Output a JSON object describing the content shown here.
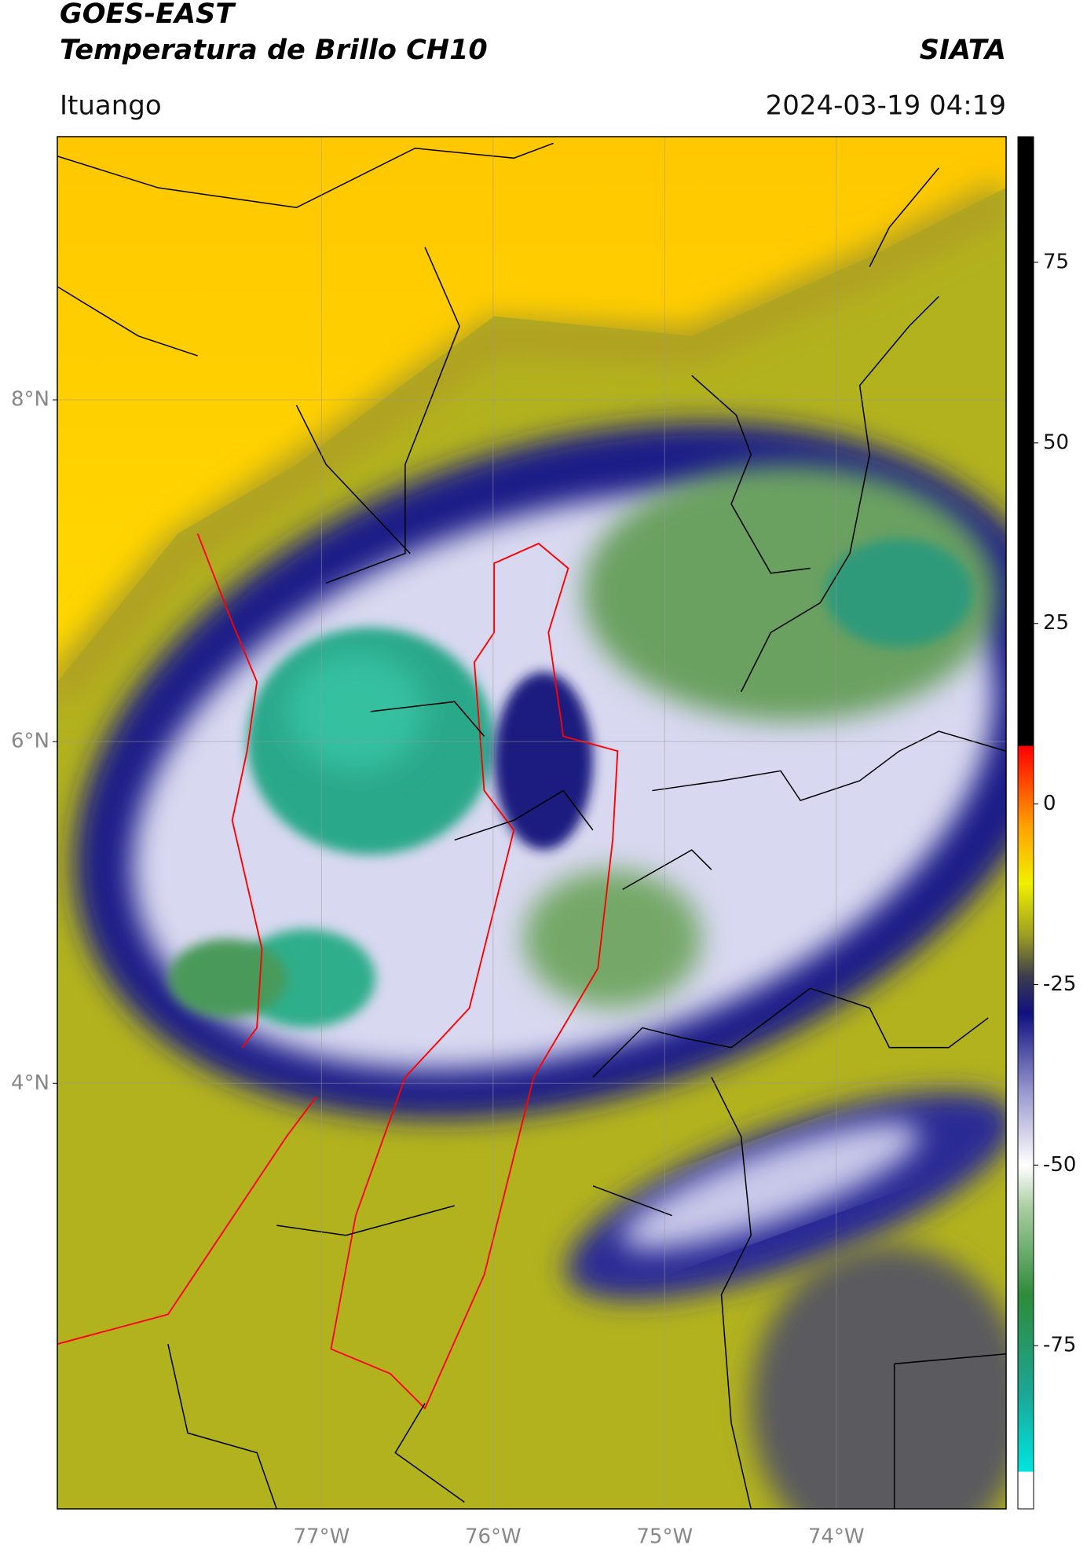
{
  "chart_data": {
    "type": "map",
    "title": "GOES-EAST",
    "subtitle": "Temperatura de Brillo CH10",
    "source": "SIATA",
    "location": "Ituango",
    "datetime": "2024-03-19 04:19",
    "xlim": [
      -78.54,
      -73.01
    ],
    "ylim": [
      1.51,
      9.54
    ],
    "xticks": [
      {
        "value": -77,
        "label": "77°W"
      },
      {
        "value": -76,
        "label": "76°W"
      },
      {
        "value": -75,
        "label": "75°W"
      },
      {
        "value": -74,
        "label": "74°W"
      }
    ],
    "yticks": [
      {
        "value": 8,
        "label": "8°N"
      },
      {
        "value": 6,
        "label": "6°N"
      },
      {
        "value": 4,
        "label": "4°N"
      }
    ],
    "grid": true,
    "colorbar": {
      "lim": [
        -97.6,
        92.4
      ],
      "ticks": [
        75,
        50,
        25,
        0,
        -25,
        -50,
        -75
      ],
      "colormap": [
        {
          "value": -97.6,
          "color": "#ffffff"
        },
        {
          "value": -92.5,
          "color": "#ffffff"
        },
        {
          "value": -92.4,
          "color": "#00e5e0"
        },
        {
          "value": -82,
          "color": "#1aa898"
        },
        {
          "value": -68,
          "color": "#2e8b3a"
        },
        {
          "value": -56,
          "color": "#a8cca0"
        },
        {
          "value": -50,
          "color": "#ffffff"
        },
        {
          "value": -40,
          "color": "#9a9ad0"
        },
        {
          "value": -29,
          "color": "#101080"
        },
        {
          "value": -24,
          "color": "#3a3a50"
        },
        {
          "value": -18,
          "color": "#a0a020"
        },
        {
          "value": -11,
          "color": "#f0f000"
        },
        {
          "value": -3,
          "color": "#ffa000"
        },
        {
          "value": 8,
          "color": "#ff0000"
        },
        {
          "value": 8.1,
          "color": "#000000"
        },
        {
          "value": 92.4,
          "color": "#000000"
        }
      ]
    }
  }
}
